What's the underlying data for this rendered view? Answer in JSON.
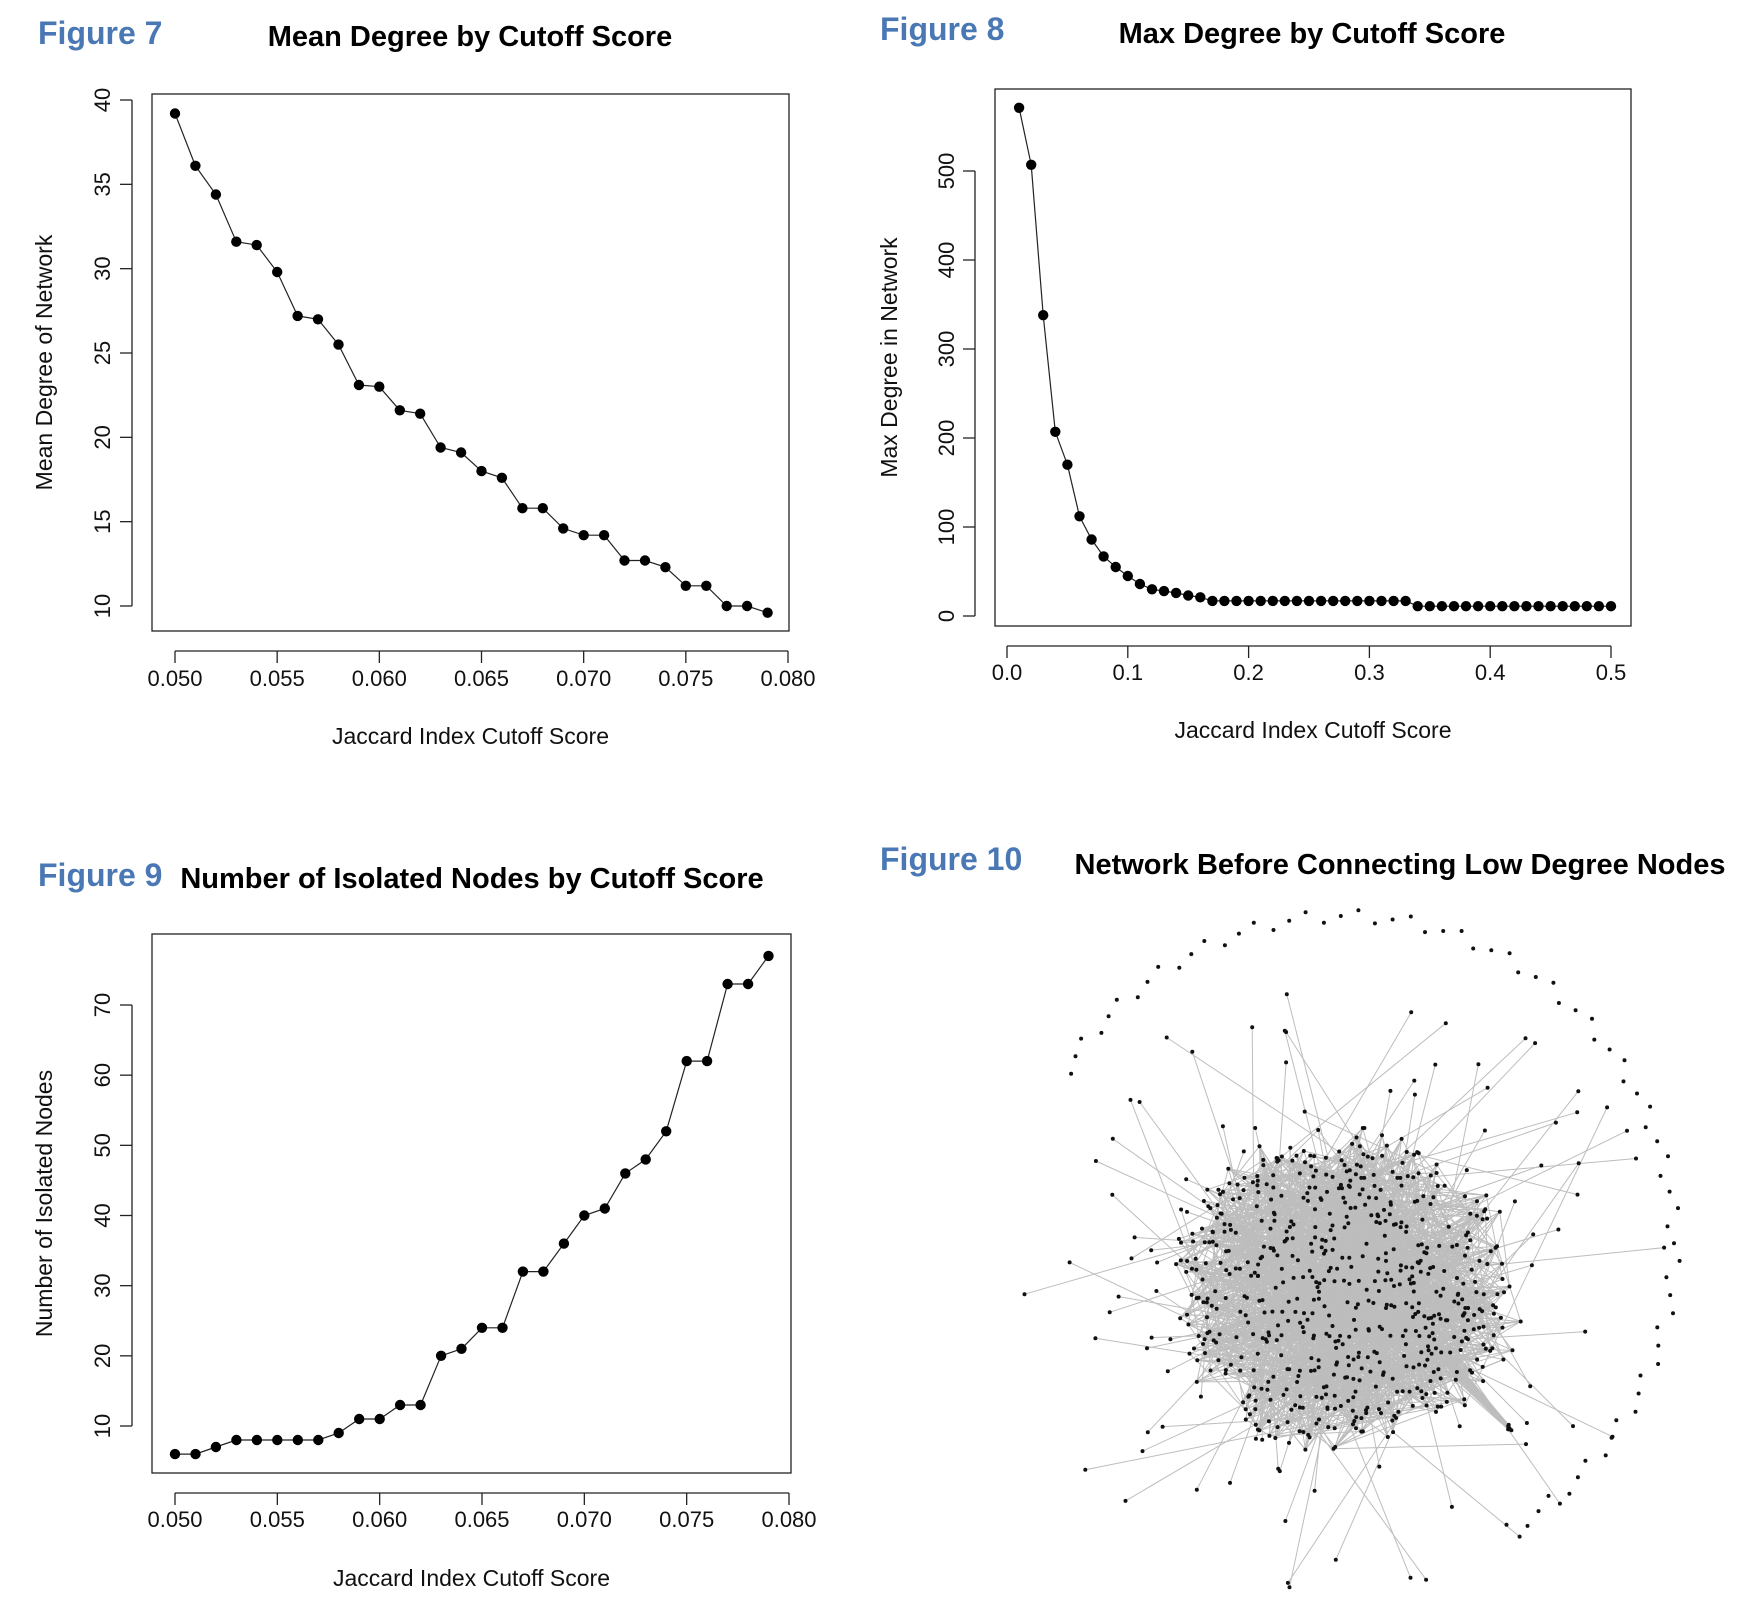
{
  "chart_data": [
    {
      "figure_label": "Figure 7",
      "type": "line",
      "title": "Mean Degree by Cutoff Score",
      "xlabel": "Jaccard Index Cutoff Score",
      "ylabel": "Mean Degree of Network",
      "xlim": [
        0.05,
        0.08
      ],
      "ylim": [
        10,
        40
      ],
      "x_ticks": [
        "0.050",
        "0.055",
        "0.060",
        "0.065",
        "0.070",
        "0.075",
        "0.080"
      ],
      "y_ticks": [
        "10",
        "15",
        "20",
        "25",
        "30",
        "35",
        "40"
      ],
      "grid": false,
      "x": [
        0.05,
        0.051,
        0.052,
        0.053,
        0.054,
        0.055,
        0.056,
        0.057,
        0.058,
        0.059,
        0.06,
        0.061,
        0.062,
        0.063,
        0.064,
        0.065,
        0.066,
        0.067,
        0.068,
        0.069,
        0.07,
        0.071,
        0.072,
        0.073,
        0.074,
        0.075,
        0.076,
        0.077,
        0.078,
        0.079
      ],
      "values": [
        39.2,
        36.1,
        34.4,
        31.6,
        31.4,
        29.8,
        27.2,
        27.0,
        25.5,
        23.1,
        23.0,
        21.6,
        21.4,
        19.4,
        19.1,
        18.0,
        17.6,
        15.8,
        15.8,
        14.6,
        14.2,
        14.2,
        12.7,
        12.7,
        12.3,
        11.2,
        11.2,
        10.0,
        10.0,
        9.6
      ]
    },
    {
      "figure_label": "Figure 8",
      "type": "line",
      "title": "Max Degree by Cutoff Score",
      "xlabel": "Jaccard Index Cutoff Score",
      "ylabel": "Max Degree in Network",
      "xlim": [
        0,
        0.5
      ],
      "ylim": [
        0,
        500
      ],
      "x_ticks": [
        "0.0",
        "0.1",
        "0.2",
        "0.3",
        "0.4",
        "0.5"
      ],
      "y_ticks": [
        "0",
        "100",
        "200",
        "300",
        "400",
        "500"
      ],
      "grid": false,
      "x": [
        0.01,
        0.02,
        0.03,
        0.04,
        0.05,
        0.06,
        0.07,
        0.08,
        0.09,
        0.1,
        0.11,
        0.12,
        0.13,
        0.14,
        0.15,
        0.16,
        0.17,
        0.18,
        0.19,
        0.2,
        0.21,
        0.22,
        0.23,
        0.24,
        0.25,
        0.26,
        0.27,
        0.28,
        0.29,
        0.3,
        0.31,
        0.32,
        0.33,
        0.34,
        0.35,
        0.36,
        0.37,
        0.38,
        0.39,
        0.4,
        0.41,
        0.42,
        0.43,
        0.44,
        0.45,
        0.46,
        0.47,
        0.48,
        0.49,
        0.5
      ],
      "values": [
        571,
        507,
        338,
        207,
        170,
        112,
        86,
        67,
        55,
        45,
        36,
        30,
        28,
        26,
        23,
        21,
        17,
        17,
        17,
        17,
        17,
        17,
        17,
        17,
        17,
        17,
        17,
        17,
        17,
        17,
        17,
        17,
        17,
        11,
        11,
        11,
        11,
        11,
        11,
        11,
        11,
        11,
        11,
        11,
        11,
        11,
        11,
        11,
        11,
        11
      ]
    },
    {
      "figure_label": "Figure 9",
      "type": "line",
      "title": "Number of Isolated Nodes by Cutoff Score",
      "xlabel": "Jaccard Index Cutoff Score",
      "ylabel": "Number of Isolated Nodes",
      "xlim": [
        0.05,
        0.08
      ],
      "ylim": [
        10,
        70
      ],
      "x_ticks": [
        "0.050",
        "0.055",
        "0.060",
        "0.065",
        "0.070",
        "0.075",
        "0.080"
      ],
      "y_ticks": [
        "10",
        "20",
        "30",
        "40",
        "50",
        "60",
        "70"
      ],
      "grid": false,
      "x": [
        0.05,
        0.051,
        0.052,
        0.053,
        0.054,
        0.055,
        0.056,
        0.057,
        0.058,
        0.059,
        0.06,
        0.061,
        0.062,
        0.063,
        0.064,
        0.065,
        0.066,
        0.067,
        0.068,
        0.069,
        0.07,
        0.071,
        0.072,
        0.073,
        0.074,
        0.075,
        0.076,
        0.077,
        0.078,
        0.079
      ],
      "values": [
        6,
        6,
        7,
        8,
        8,
        8,
        8,
        8,
        9,
        11,
        11,
        13,
        13,
        20,
        21,
        24,
        24,
        32,
        32,
        36,
        40,
        41,
        46,
        48,
        52,
        62,
        62,
        73,
        73,
        77
      ]
    },
    {
      "figure_label": "Figure 10",
      "type": "network",
      "title": "Network Before Connecting Low Degree Nodes"
    }
  ]
}
